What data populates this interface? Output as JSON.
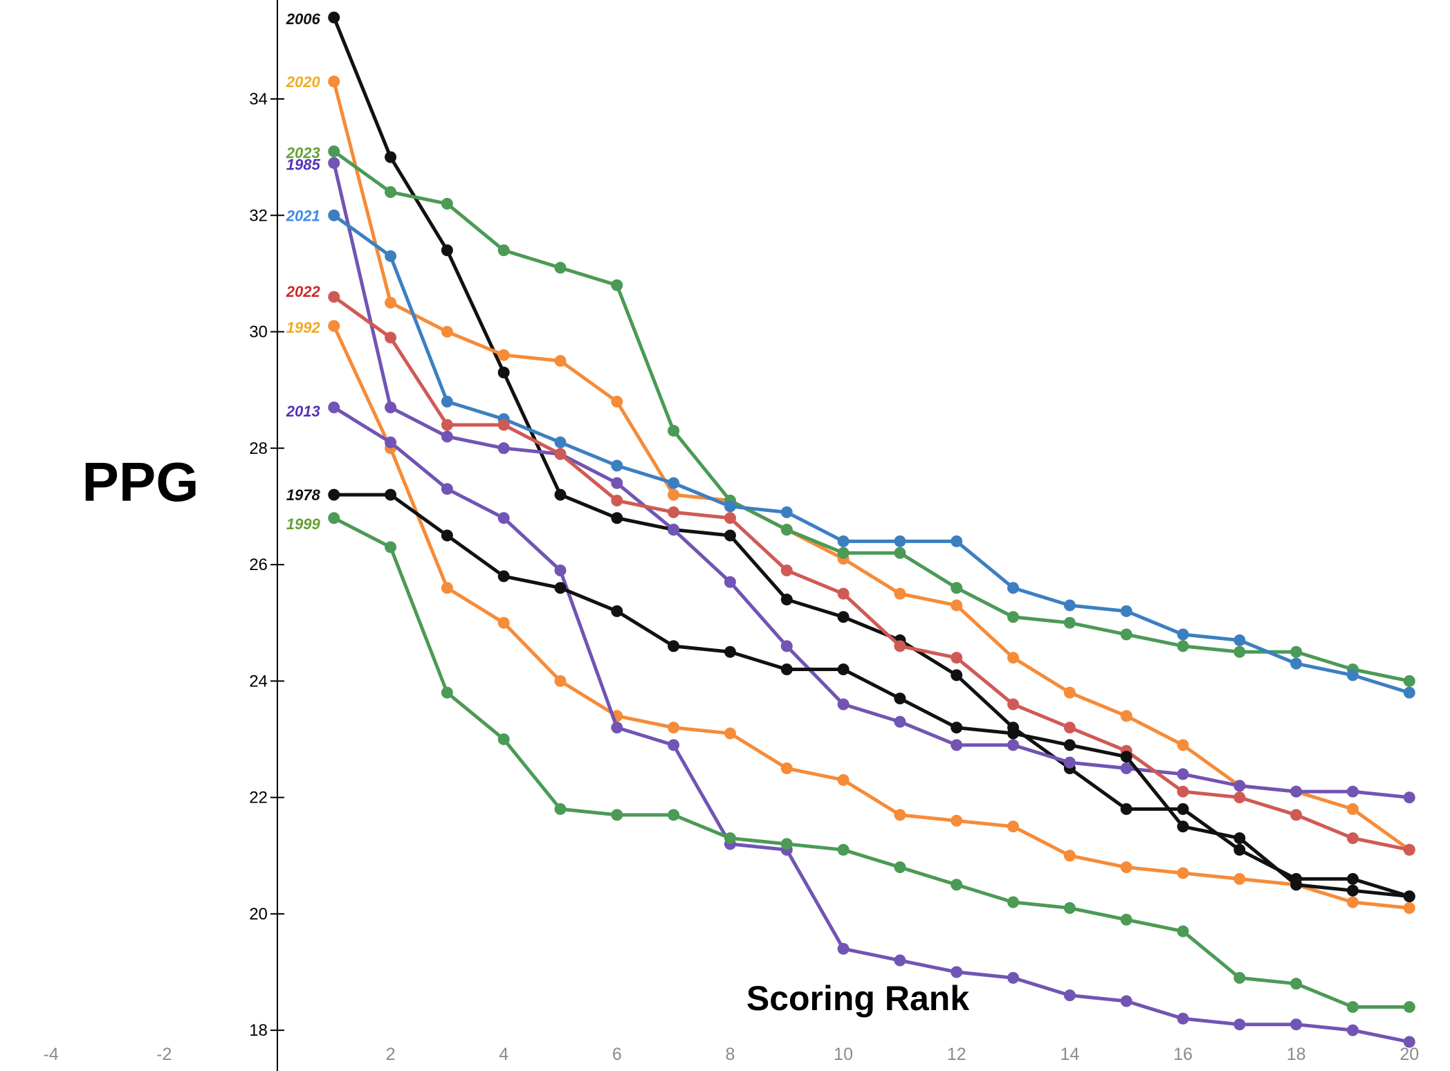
{
  "chart_data": {
    "type": "line",
    "title": "",
    "xlabel": "Scoring Rank",
    "ylabel": "PPG",
    "xlim": [
      -4.9,
      20.4
    ],
    "ylim": [
      17.3,
      35.7
    ],
    "x_ticks": [
      -4,
      -2,
      2,
      4,
      6,
      8,
      10,
      12,
      14,
      16,
      18,
      20
    ],
    "y_ticks": [
      18,
      20,
      22,
      24,
      26,
      28,
      30,
      32,
      34
    ],
    "grid": false,
    "legend": "inline labels at left of lines",
    "series": [
      {
        "name": "2006",
        "color": "#111111",
        "label_color": "#111111",
        "values": [
          35.4,
          33.0,
          31.4,
          29.3,
          27.2,
          26.8,
          26.6,
          26.5,
          25.4,
          25.1,
          24.7,
          24.1,
          23.2,
          22.5,
          21.8,
          21.8,
          21.1,
          20.6,
          20.6,
          20.3
        ]
      },
      {
        "name": "2020",
        "color": "#f68b38",
        "label_color": "#f2a920",
        "values": [
          34.3,
          30.5,
          30.0,
          29.6,
          29.5,
          28.8,
          27.2,
          27.1,
          26.6,
          26.1,
          25.5,
          25.3,
          24.4,
          23.8,
          23.4,
          22.9,
          22.2,
          22.1,
          21.8,
          21.1
        ]
      },
      {
        "name": "2023",
        "color": "#4b9a55",
        "label_color": "#65a035",
        "values": [
          33.1,
          32.4,
          32.2,
          31.4,
          31.1,
          30.8,
          28.3,
          27.1,
          26.6,
          26.2,
          26.2,
          25.6,
          25.1,
          25.0,
          24.8,
          24.6,
          24.5,
          24.5,
          24.2,
          24.0
        ]
      },
      {
        "name": "1985",
        "color": "#7154b4",
        "label_color": "#5432b8",
        "values": [
          32.9,
          28.7,
          28.2,
          28.0,
          27.9,
          27.4,
          26.6,
          25.7,
          24.6,
          23.6,
          23.3,
          22.9,
          22.9,
          22.6,
          22.5,
          22.4,
          22.2,
          22.1,
          22.1,
          22.0
        ]
      },
      {
        "name": "2021",
        "color": "#3c7fc1",
        "label_color": "#3b8ae6",
        "values": [
          32.0,
          31.3,
          28.8,
          28.5,
          28.1,
          27.7,
          27.4,
          27.0,
          26.9,
          26.4,
          26.4,
          26.4,
          25.6,
          25.3,
          25.2,
          24.8,
          24.7,
          24.3,
          24.1,
          23.8
        ]
      },
      {
        "name": "2022",
        "color": "#cf5a55",
        "label_color": "#c92c28",
        "values": [
          30.6,
          29.9,
          28.4,
          28.4,
          27.9,
          27.1,
          26.9,
          26.8,
          25.9,
          25.5,
          24.6,
          24.4,
          23.6,
          23.2,
          22.8,
          22.1,
          22.0,
          21.7,
          21.3,
          21.1
        ]
      },
      {
        "name": "1992",
        "color": "#f68b38",
        "label_color": "#f2a920",
        "values": [
          30.1,
          28.0,
          25.6,
          25.0,
          24.0,
          23.4,
          23.2,
          23.1,
          22.5,
          22.3,
          21.7,
          21.6,
          21.5,
          21.0,
          20.8,
          20.7,
          20.6,
          20.5,
          20.2,
          20.1
        ]
      },
      {
        "name": "2013",
        "color": "#7154b4",
        "label_color": "#5432b8",
        "values": [
          28.7,
          28.1,
          27.3,
          26.8,
          25.9,
          23.2,
          22.9,
          21.2,
          21.1,
          19.4,
          19.2,
          19.0,
          18.9,
          18.6,
          18.5,
          18.2,
          18.1,
          18.1,
          18.0,
          17.8
        ]
      },
      {
        "name": "1978",
        "color": "#111111",
        "label_color": "#111111",
        "values": [
          27.2,
          27.2,
          26.5,
          25.8,
          25.6,
          25.2,
          24.6,
          24.5,
          24.2,
          24.2,
          23.7,
          23.2,
          23.1,
          22.9,
          22.7,
          21.5,
          21.3,
          20.5,
          20.4,
          20.3
        ]
      },
      {
        "name": "1999",
        "color": "#4b9a55",
        "label_color": "#65a035",
        "values": [
          26.8,
          26.3,
          23.8,
          23.0,
          21.8,
          21.7,
          21.7,
          21.3,
          21.2,
          21.1,
          20.8,
          20.5,
          20.2,
          20.1,
          19.9,
          19.7,
          18.9,
          18.8,
          18.4,
          18.4
        ]
      }
    ]
  }
}
